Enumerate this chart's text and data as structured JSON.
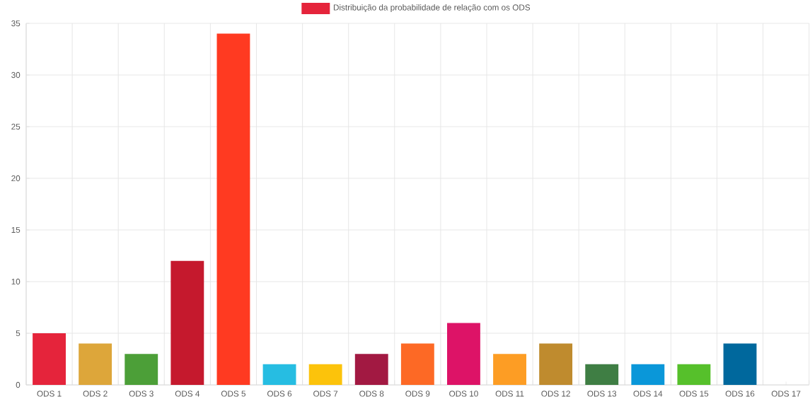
{
  "chart_data": {
    "type": "bar",
    "categories": [
      "ODS 1",
      "ODS 2",
      "ODS 3",
      "ODS 4",
      "ODS 5",
      "ODS 6",
      "ODS 7",
      "ODS 8",
      "ODS 9",
      "ODS 10",
      "ODS 11",
      "ODS 12",
      "ODS 13",
      "ODS 14",
      "ODS 15",
      "ODS 16",
      "ODS 17"
    ],
    "series": [
      {
        "name": "Distribuição da probabilidade de relação com os ODS",
        "color": "#e5243b",
        "colors": [
          "#e5243b",
          "#dda63a",
          "#4c9f38",
          "#c5192d",
          "#ff3a21",
          "#26bde2",
          "#fcc30b",
          "#a21942",
          "#fd6925",
          "#dd1367",
          "#fd9d24",
          "#bf8b2e",
          "#3f7e44",
          "#0a97d9",
          "#56c02b",
          "#00689d",
          "#19486a"
        ],
        "values": [
          5,
          4,
          3,
          12,
          34,
          2,
          2,
          3,
          4,
          6,
          3,
          4,
          2,
          2,
          2,
          4,
          0
        ]
      }
    ],
    "ylim": [
      0,
      35
    ],
    "yticks": [
      0,
      5,
      10,
      15,
      20,
      25,
      30,
      35
    ],
    "grid": true,
    "legend": "top"
  }
}
